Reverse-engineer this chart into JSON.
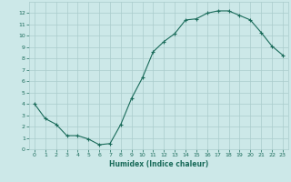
{
  "x": [
    0,
    1,
    2,
    3,
    4,
    5,
    6,
    7,
    8,
    9,
    10,
    11,
    12,
    13,
    14,
    15,
    16,
    17,
    18,
    19,
    20,
    21,
    22,
    23
  ],
  "y": [
    4.0,
    2.7,
    2.2,
    1.2,
    1.2,
    0.9,
    0.4,
    0.5,
    2.2,
    4.5,
    6.3,
    8.6,
    9.5,
    10.2,
    11.4,
    11.5,
    12.0,
    12.2,
    12.2,
    11.8,
    11.4,
    10.3,
    9.1,
    8.3
  ],
  "xlabel": "Humidex (Indice chaleur)",
  "ylim": [
    0,
    13
  ],
  "xlim": [
    -0.5,
    23.5
  ],
  "yticks": [
    0,
    1,
    2,
    3,
    4,
    5,
    6,
    7,
    8,
    9,
    10,
    11,
    12
  ],
  "xticks": [
    0,
    1,
    2,
    3,
    4,
    5,
    6,
    7,
    8,
    9,
    10,
    11,
    12,
    13,
    14,
    15,
    16,
    17,
    18,
    19,
    20,
    21,
    22,
    23
  ],
  "line_color": "#1a6b5a",
  "marker": "+",
  "bg_color": "#cce8e8",
  "grid_color": "#aacccc",
  "axis_color": "#336655"
}
